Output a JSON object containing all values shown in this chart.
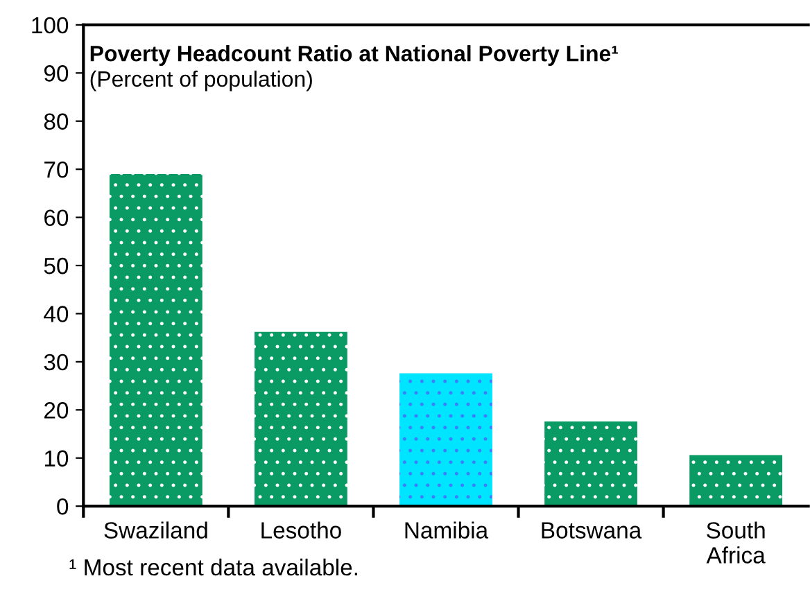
{
  "chart_data": {
    "type": "bar",
    "title": "Poverty Headcount Ratio at National Poverty Line¹",
    "subtitle": "(Percent of population)",
    "categories": [
      "Swaziland",
      "Lesotho",
      "Namibia",
      "Botswana",
      "South\nAfrica"
    ],
    "values": [
      69,
      36.2,
      27.6,
      17.6,
      10.6
    ],
    "colors": [
      "#0a9a64",
      "#0a9a64",
      "#00e5ff",
      "#0a9a64",
      "#0a9a64"
    ],
    "ylim": [
      0,
      100
    ],
    "yticks": [
      0,
      10,
      20,
      30,
      40,
      50,
      60,
      70,
      80,
      90,
      100
    ],
    "grid": false,
    "legend": false,
    "annotations": [
      "¹ Most recent data available."
    ]
  }
}
